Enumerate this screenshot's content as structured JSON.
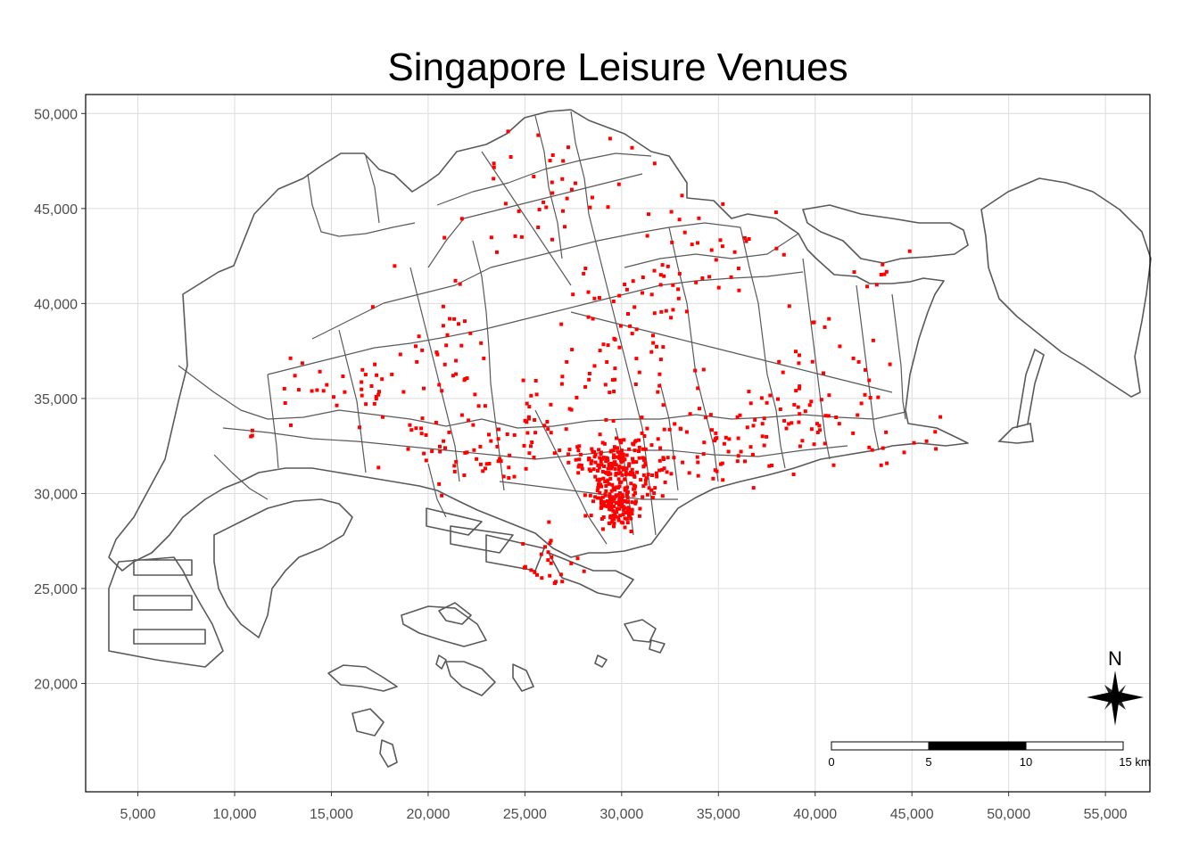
{
  "title": "Singapore Leisure Venues",
  "chart_data": {
    "type": "map",
    "title": "Singapore Leisure Venues",
    "xlim": [
      2300,
      57300
    ],
    "ylim": [
      14300,
      51000
    ],
    "x_ticks": [
      5000,
      10000,
      15000,
      20000,
      25000,
      30000,
      35000,
      40000,
      45000,
      50000,
      55000
    ],
    "x_tick_labels": [
      "5,000",
      "10,000",
      "15,000",
      "20,000",
      "25,000",
      "30,000",
      "35,000",
      "40,000",
      "45,000",
      "50,000",
      "55,000"
    ],
    "y_ticks": [
      20000,
      25000,
      30000,
      35000,
      40000,
      45000,
      50000
    ],
    "y_tick_labels": [
      "20,000",
      "25,000",
      "30,000",
      "35,000",
      "40,000",
      "45,000",
      "50,000"
    ],
    "grid": true,
    "point_color": "#ff0000",
    "boundary_color": "#595959",
    "scale_bar": {
      "labels": [
        "0",
        "5",
        "10",
        "15 km"
      ],
      "position": "bottom-right"
    },
    "north_arrow": {
      "label": "N",
      "position": "bottom-right"
    },
    "venue_clusters": [
      {
        "cx": 29700,
        "cy": 29400,
        "sx": 600,
        "sy": 550,
        "n": 140
      },
      {
        "cx": 30200,
        "cy": 31300,
        "sx": 900,
        "sy": 700,
        "n": 150
      },
      {
        "cx": 28400,
        "cy": 31700,
        "sx": 800,
        "sy": 400,
        "n": 40
      },
      {
        "cx": 23500,
        "cy": 31800,
        "sx": 2300,
        "sy": 1000,
        "n": 50
      },
      {
        "cx": 34500,
        "cy": 32600,
        "sx": 2800,
        "sy": 1100,
        "n": 65
      },
      {
        "cx": 40000,
        "cy": 33500,
        "sx": 2900,
        "sy": 1200,
        "n": 55
      },
      {
        "cx": 40500,
        "cy": 37000,
        "sx": 1500,
        "sy": 1600,
        "n": 25
      },
      {
        "cx": 30900,
        "cy": 38400,
        "sx": 2000,
        "sy": 2400,
        "n": 70
      },
      {
        "cx": 35000,
        "cy": 42500,
        "sx": 1800,
        "sy": 1400,
        "n": 30
      },
      {
        "cx": 26600,
        "cy": 46000,
        "sx": 2500,
        "sy": 1800,
        "n": 40
      },
      {
        "cx": 16200,
        "cy": 35400,
        "sx": 3000,
        "sy": 1200,
        "n": 45
      },
      {
        "cx": 20600,
        "cy": 37000,
        "sx": 1800,
        "sy": 2200,
        "n": 40
      },
      {
        "cx": 26200,
        "cy": 26300,
        "sx": 900,
        "sy": 900,
        "n": 25
      },
      {
        "cx": 44000,
        "cy": 41400,
        "sx": 1800,
        "sy": 800,
        "n": 8
      },
      {
        "cx": 26000,
        "cy": 34000,
        "sx": 1800,
        "sy": 1200,
        "n": 30
      }
    ]
  }
}
